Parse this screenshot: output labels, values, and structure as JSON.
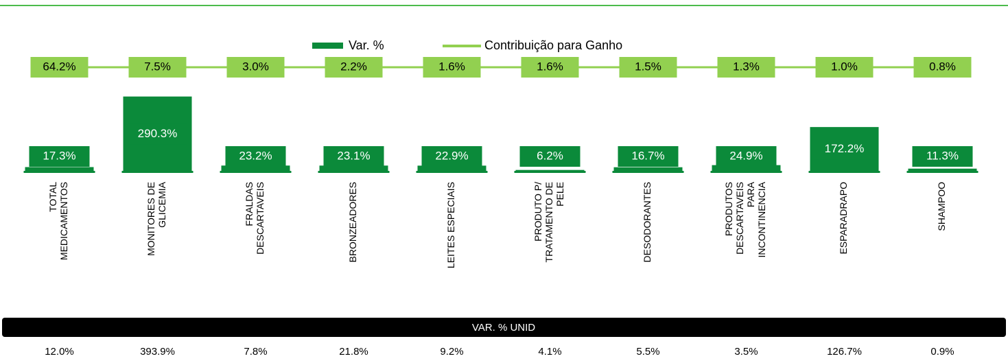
{
  "chart_data": {
    "type": "bar",
    "categories": [
      [
        "TOTAL",
        "MEDICAMENTOS"
      ],
      [
        "MONITORES DE",
        "GLICEMIA"
      ],
      [
        "FRALDAS",
        "DESCARTAVEIS"
      ],
      [
        "BRONZEADORES"
      ],
      [
        "LEITES ESPECIAIS"
      ],
      [
        "PRODUTO P/",
        "TRATAMENTO DE",
        "PELE"
      ],
      [
        "DESODORANTES"
      ],
      [
        "PRODUTOS",
        "DESCARTAVEIS",
        "PARA",
        "INCONTINENCIA"
      ],
      [
        "ESPARADRAPO"
      ],
      [
        "SHAMPOO"
      ]
    ],
    "ylim": [
      0,
      300
    ],
    "series": [
      {
        "name": "Var. %",
        "color": "#0b8a3a",
        "values": [
          17.3,
          290.3,
          23.2,
          23.1,
          22.9,
          6.2,
          16.7,
          24.9,
          172.2,
          11.3
        ],
        "value_labels": [
          "17.3%",
          "290.3%",
          "23.2%",
          "23.1%",
          "22.9%",
          "6.2%",
          "16.7%",
          "24.9%",
          "172.2%",
          "11.3%"
        ]
      },
      {
        "name": "Contribuição para Ganho",
        "color": "#92d050",
        "values": [
          64.2,
          7.5,
          3.0,
          2.2,
          1.6,
          1.6,
          1.5,
          1.3,
          1.0,
          0.8
        ],
        "value_labels": [
          "64.2%",
          "7.5%",
          "3.0%",
          "2.2%",
          "1.6%",
          "1.6%",
          "1.5%",
          "1.3%",
          "1.0%",
          "0.8%"
        ]
      }
    ]
  },
  "table": {
    "title": "VAR. % UNID",
    "values": [
      "12.0%",
      "393.9%",
      "7.8%",
      "21.8%",
      "9.2%",
      "4.1%",
      "5.5%",
      "3.5%",
      "126.7%",
      "0.9%"
    ]
  }
}
